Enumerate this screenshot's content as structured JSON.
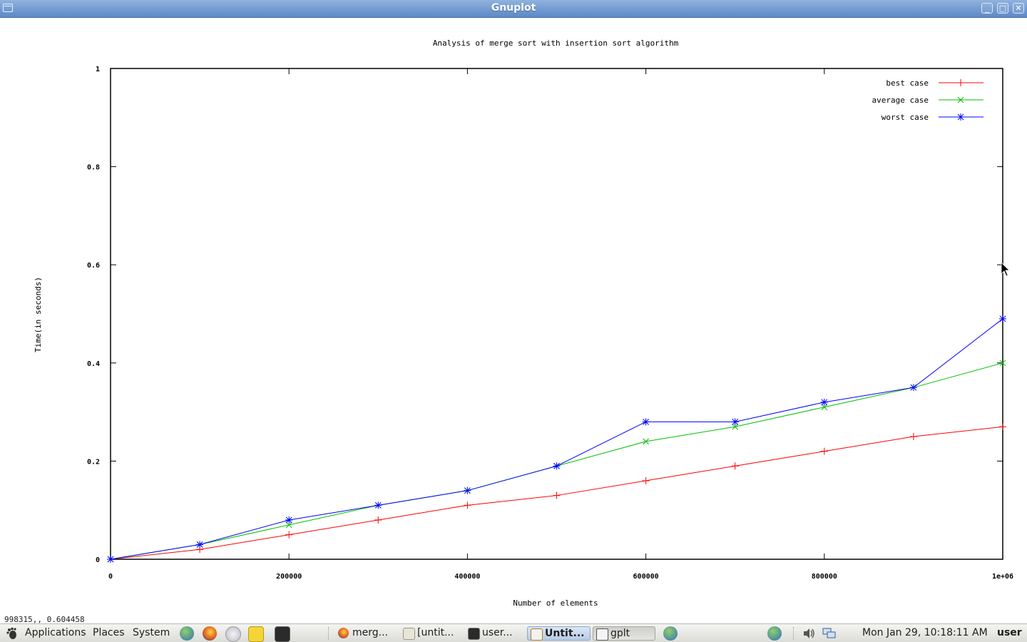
{
  "window": {
    "title": "Gnuplot"
  },
  "chart_data": {
    "type": "line",
    "title": "Analysis of merge sort with insertion sort algorithm",
    "xlabel": "Number of elements",
    "ylabel": "Time(in seconds)",
    "xlim": [
      0,
      1000000
    ],
    "ylim": [
      0,
      1
    ],
    "xticks": [
      {
        "value": 0,
        "label": "0"
      },
      {
        "value": 200000,
        "label": "200000"
      },
      {
        "value": 400000,
        "label": "400000"
      },
      {
        "value": 600000,
        "label": "600000"
      },
      {
        "value": 800000,
        "label": "800000"
      },
      {
        "value": 1000000,
        "label": "1e+06"
      }
    ],
    "yticks": [
      {
        "value": 0,
        "label": "0"
      },
      {
        "value": 0.2,
        "label": "0.2"
      },
      {
        "value": 0.4,
        "label": "0.4"
      },
      {
        "value": 0.6,
        "label": "0.6"
      },
      {
        "value": 0.8,
        "label": "0.8"
      },
      {
        "value": 1,
        "label": "1"
      }
    ],
    "legend_position": "top-right",
    "grid": false,
    "x": [
      0,
      100000,
      200000,
      300000,
      400000,
      500000,
      600000,
      700000,
      800000,
      900000,
      1000000
    ],
    "series": [
      {
        "name": "best case",
        "color": "#ff0000",
        "marker": "plus",
        "values": [
          0,
          0.02,
          0.05,
          0.08,
          0.11,
          0.13,
          0.16,
          0.19,
          0.22,
          0.25,
          0.27
        ]
      },
      {
        "name": "average case",
        "color": "#00c000",
        "marker": "cross",
        "values": [
          0,
          0.03,
          0.07,
          0.11,
          0.14,
          0.19,
          0.24,
          0.27,
          0.31,
          0.35,
          0.4
        ]
      },
      {
        "name": "worst case",
        "color": "#0000ff",
        "marker": "star",
        "values": [
          0,
          0.03,
          0.08,
          0.11,
          0.14,
          0.19,
          0.28,
          0.28,
          0.32,
          0.35,
          0.49
        ]
      }
    ]
  },
  "status": {
    "coords": "998315,, 0.604458"
  },
  "panel": {
    "menus": [
      "Applications",
      "Places",
      "System"
    ],
    "tasks": [
      {
        "label": "merg...",
        "icon": "firefox-icon",
        "state": "normal"
      },
      {
        "label": "[untit...",
        "icon": "folder-icon",
        "state": "normal"
      },
      {
        "label": "user...",
        "icon": "terminal-icon",
        "state": "normal"
      },
      {
        "label": "Untit...",
        "icon": "editor-icon",
        "state": "active"
      },
      {
        "label": "gplt",
        "icon": "window-icon",
        "state": "pressed"
      }
    ],
    "clock": "Mon Jan 29, 10:18:11 AM",
    "user": "user"
  }
}
